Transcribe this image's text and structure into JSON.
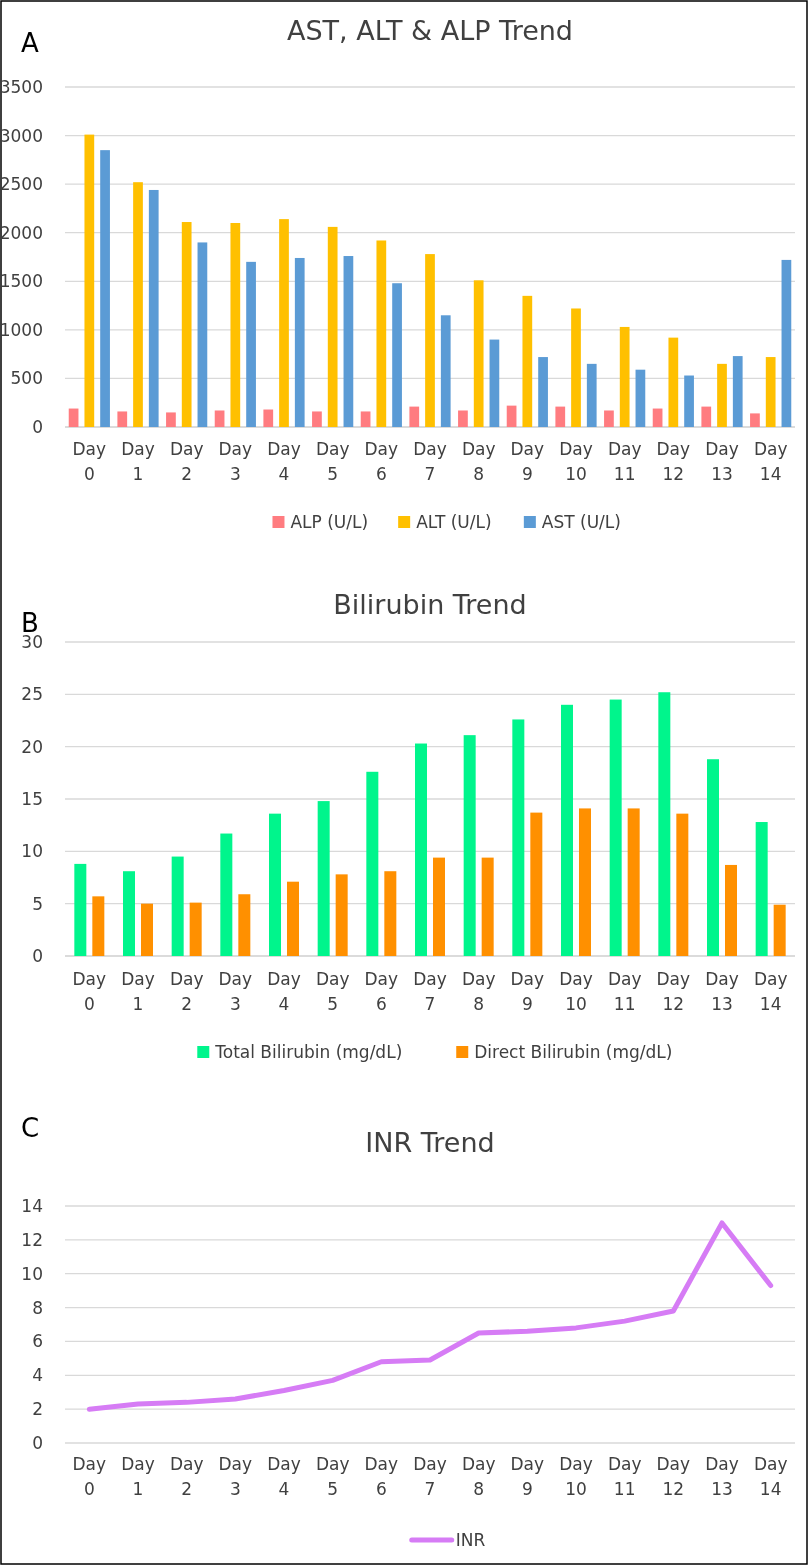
{
  "chart_data": [
    {
      "type": "bar",
      "title": "AST, ALT & ALP Trend",
      "annotations": [
        "A"
      ],
      "categories": [
        "Day 0",
        "Day 1",
        "Day 2",
        "Day 3",
        "Day 4",
        "Day 5",
        "Day 6",
        "Day 7",
        "Day 8",
        "Day 9",
        "Day 10",
        "Day 11",
        "Day 12",
        "Day 13",
        "Day 14"
      ],
      "series": [
        {
          "name": "ALP (U/L)",
          "color": "#ff7c80",
          "values": [
            190,
            160,
            150,
            170,
            180,
            160,
            160,
            210,
            170,
            220,
            210,
            170,
            190,
            210,
            140
          ]
        },
        {
          "name": "ALT (U/L)",
          "color": "#ffc000",
          "values": [
            3010,
            2520,
            2110,
            2100,
            2140,
            2060,
            1920,
            1780,
            1510,
            1350,
            1220,
            1030,
            920,
            650,
            720
          ]
        },
        {
          "name": "AST (U/L)",
          "color": "#5b9bd5",
          "values": [
            2850,
            2440,
            1900,
            1700,
            1740,
            1760,
            1480,
            1150,
            900,
            720,
            650,
            590,
            530,
            730,
            1720
          ]
        }
      ],
      "ylim": [
        0,
        3500
      ],
      "yticks": [
        0,
        500,
        1000,
        1500,
        2000,
        2500,
        3000,
        3500
      ],
      "grid": "y",
      "legend": "bottom"
    },
    {
      "type": "bar",
      "title": "Bilirubin Trend",
      "annotations": [
        "B"
      ],
      "categories": [
        "Day 0",
        "Day 1",
        "Day 2",
        "Day 3",
        "Day 4",
        "Day 5",
        "Day 6",
        "Day 7",
        "Day 8",
        "Day 9",
        "Day 10",
        "Day 11",
        "Day 12",
        "Day 13",
        "Day 14"
      ],
      "series": [
        {
          "name": "Total Bilirubin (mg/dL)",
          "color": "#00f58c",
          "values": [
            8.8,
            8.1,
            9.5,
            11.7,
            13.6,
            14.8,
            17.6,
            20.3,
            21.1,
            22.6,
            24.0,
            24.5,
            25.2,
            18.8,
            12.8
          ]
        },
        {
          "name": "Direct Bilirubin (mg/dL)",
          "color": "#ff9000",
          "values": [
            5.7,
            5.0,
            5.1,
            5.9,
            7.1,
            7.8,
            8.1,
            9.4,
            9.4,
            13.7,
            14.1,
            14.1,
            13.6,
            8.7,
            4.9
          ]
        }
      ],
      "ylim": [
        0,
        30
      ],
      "yticks": [
        0,
        5,
        10,
        15,
        20,
        25,
        30
      ],
      "grid": "y",
      "legend": "bottom"
    },
    {
      "type": "line",
      "title": "INR Trend",
      "annotations": [
        "C"
      ],
      "categories": [
        "Day 0",
        "Day 1",
        "Day 2",
        "Day 3",
        "Day 4",
        "Day 5",
        "Day 6",
        "Day 7",
        "Day 8",
        "Day 9",
        "Day 10",
        "Day 11",
        "Day 12",
        "Day 13",
        "Day 14"
      ],
      "series": [
        {
          "name": "INR",
          "color": "#d67cf5",
          "values": [
            2.0,
            2.3,
            2.4,
            2.6,
            3.1,
            3.7,
            4.8,
            4.9,
            6.5,
            6.6,
            6.8,
            7.2,
            7.8,
            13.0,
            9.3
          ]
        }
      ],
      "ylim": [
        0,
        14
      ],
      "yticks": [
        0,
        2,
        4,
        6,
        8,
        10,
        12,
        14
      ],
      "grid": "y",
      "legend": "bottom",
      "marker": "none"
    }
  ]
}
